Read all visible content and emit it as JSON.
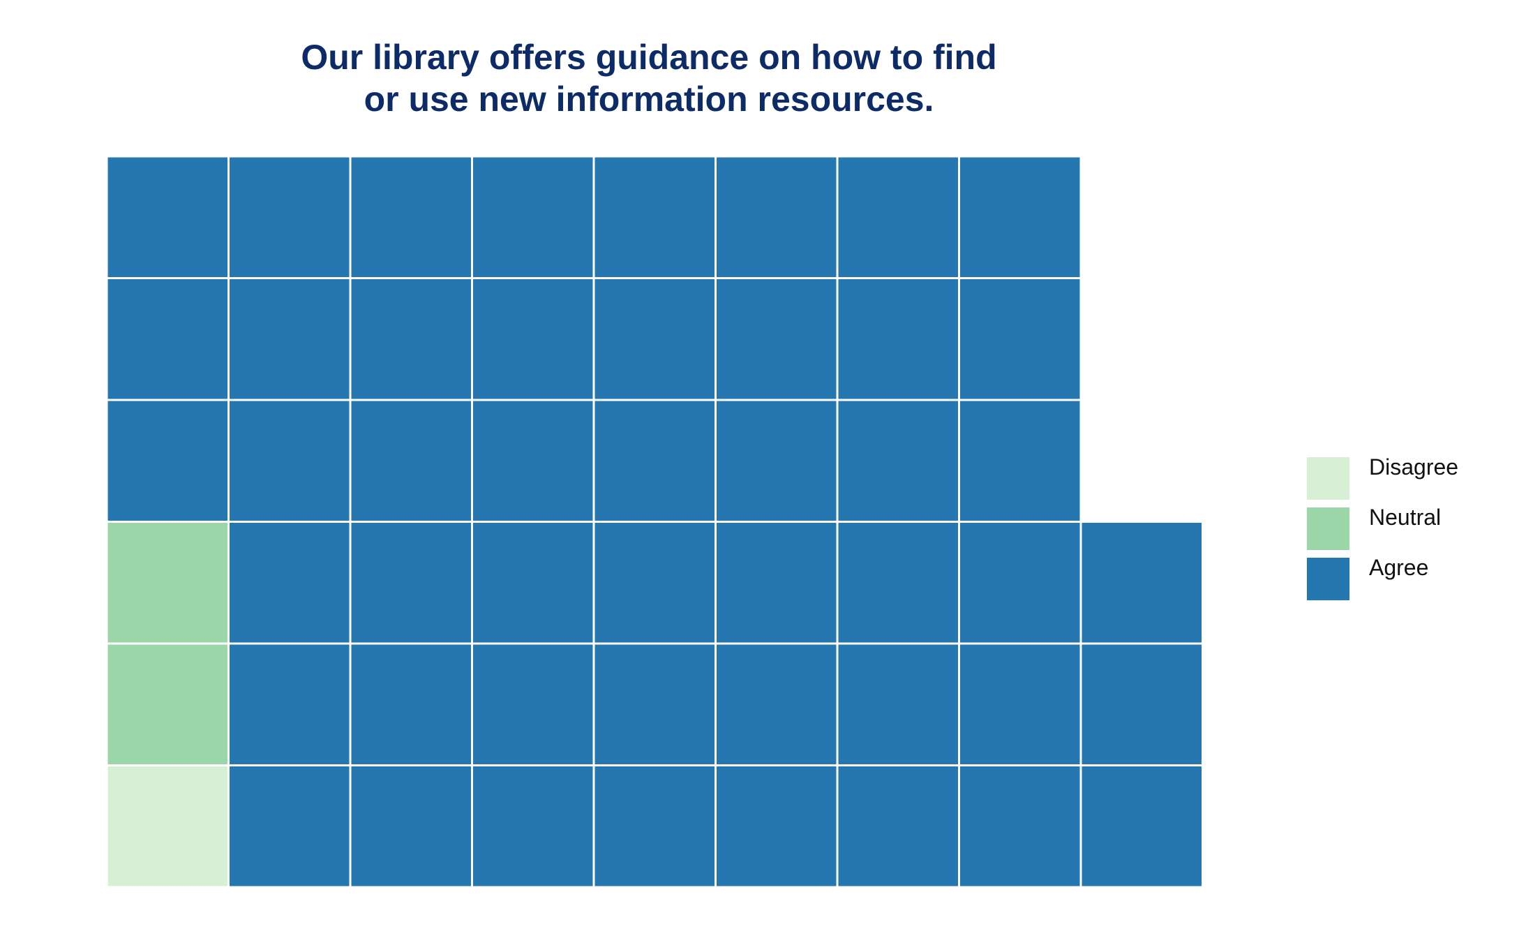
{
  "chart_data": {
    "type": "waffle",
    "title_lines": [
      "Our library offers guidance on how to find",
      "or use new information resources."
    ],
    "rows": 6,
    "fill_order": "column-major from bottom-left",
    "categories": [
      {
        "name": "Disagree",
        "count": 1,
        "color": "#d7f0d5"
      },
      {
        "name": "Neutral",
        "count": 2,
        "color": "#9bd6a8"
      },
      {
        "name": "Agree",
        "count": 48,
        "color": "#2577b0"
      }
    ],
    "total_cells": 51,
    "legend_position": "right"
  }
}
